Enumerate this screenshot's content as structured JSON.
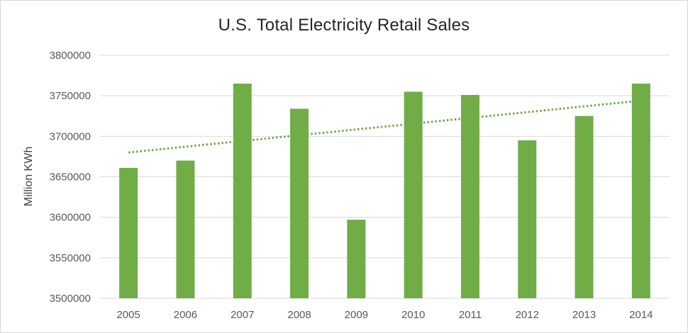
{
  "chart_data": {
    "type": "bar",
    "title": "U.S. Total Electricity Retail Sales",
    "xlabel": "",
    "ylabel": "Million KWh",
    "categories": [
      "2005",
      "2006",
      "2007",
      "2008",
      "2009",
      "2010",
      "2011",
      "2012",
      "2013",
      "2014"
    ],
    "series": [
      {
        "values": [
          3661000,
          3670000,
          3765000,
          3734000,
          3597000,
          3755000,
          3751000,
          3695000,
          3725000,
          3765000
        ]
      }
    ],
    "trendline": {
      "type": "linear",
      "style": "dotted",
      "start_value": 3680000,
      "end_value": 3744000
    },
    "ylim": [
      3500000,
      3800000
    ],
    "yticks": [
      "3500000",
      "3550000",
      "3600000",
      "3650000",
      "3700000",
      "3750000",
      "3800000"
    ],
    "grid": true,
    "legend": "none",
    "colors": {
      "bar": "#70ad47",
      "trendline": "#70ad47",
      "grid": "#d9d9d9",
      "text": "#595959"
    }
  }
}
